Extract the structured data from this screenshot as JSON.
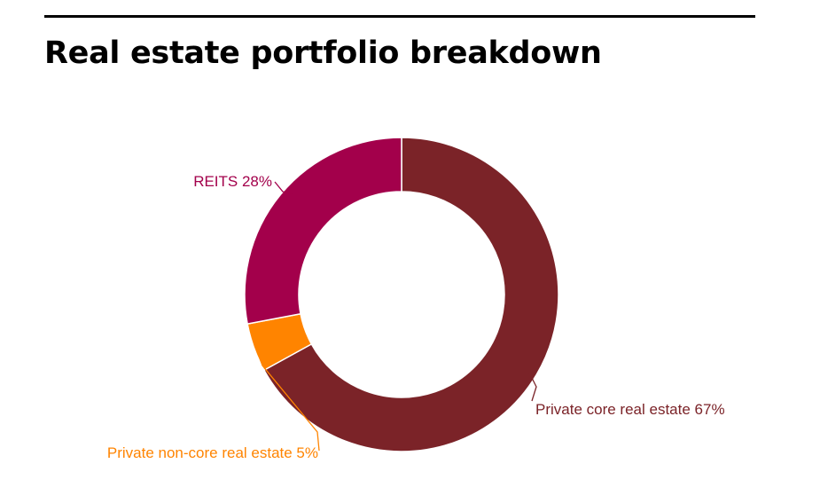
{
  "page": {
    "title": "Real estate portfolio breakdown"
  },
  "chart_data": {
    "type": "pie",
    "donut": true,
    "slices": [
      {
        "label": "Private core real estate 67%",
        "value": 67,
        "color": "#7b2328"
      },
      {
        "label": "Private non-core real estate 5%",
        "value": 5,
        "color": "#ff8400"
      },
      {
        "label": "REITS 28%",
        "value": 28,
        "color": "#a3004b"
      }
    ]
  }
}
